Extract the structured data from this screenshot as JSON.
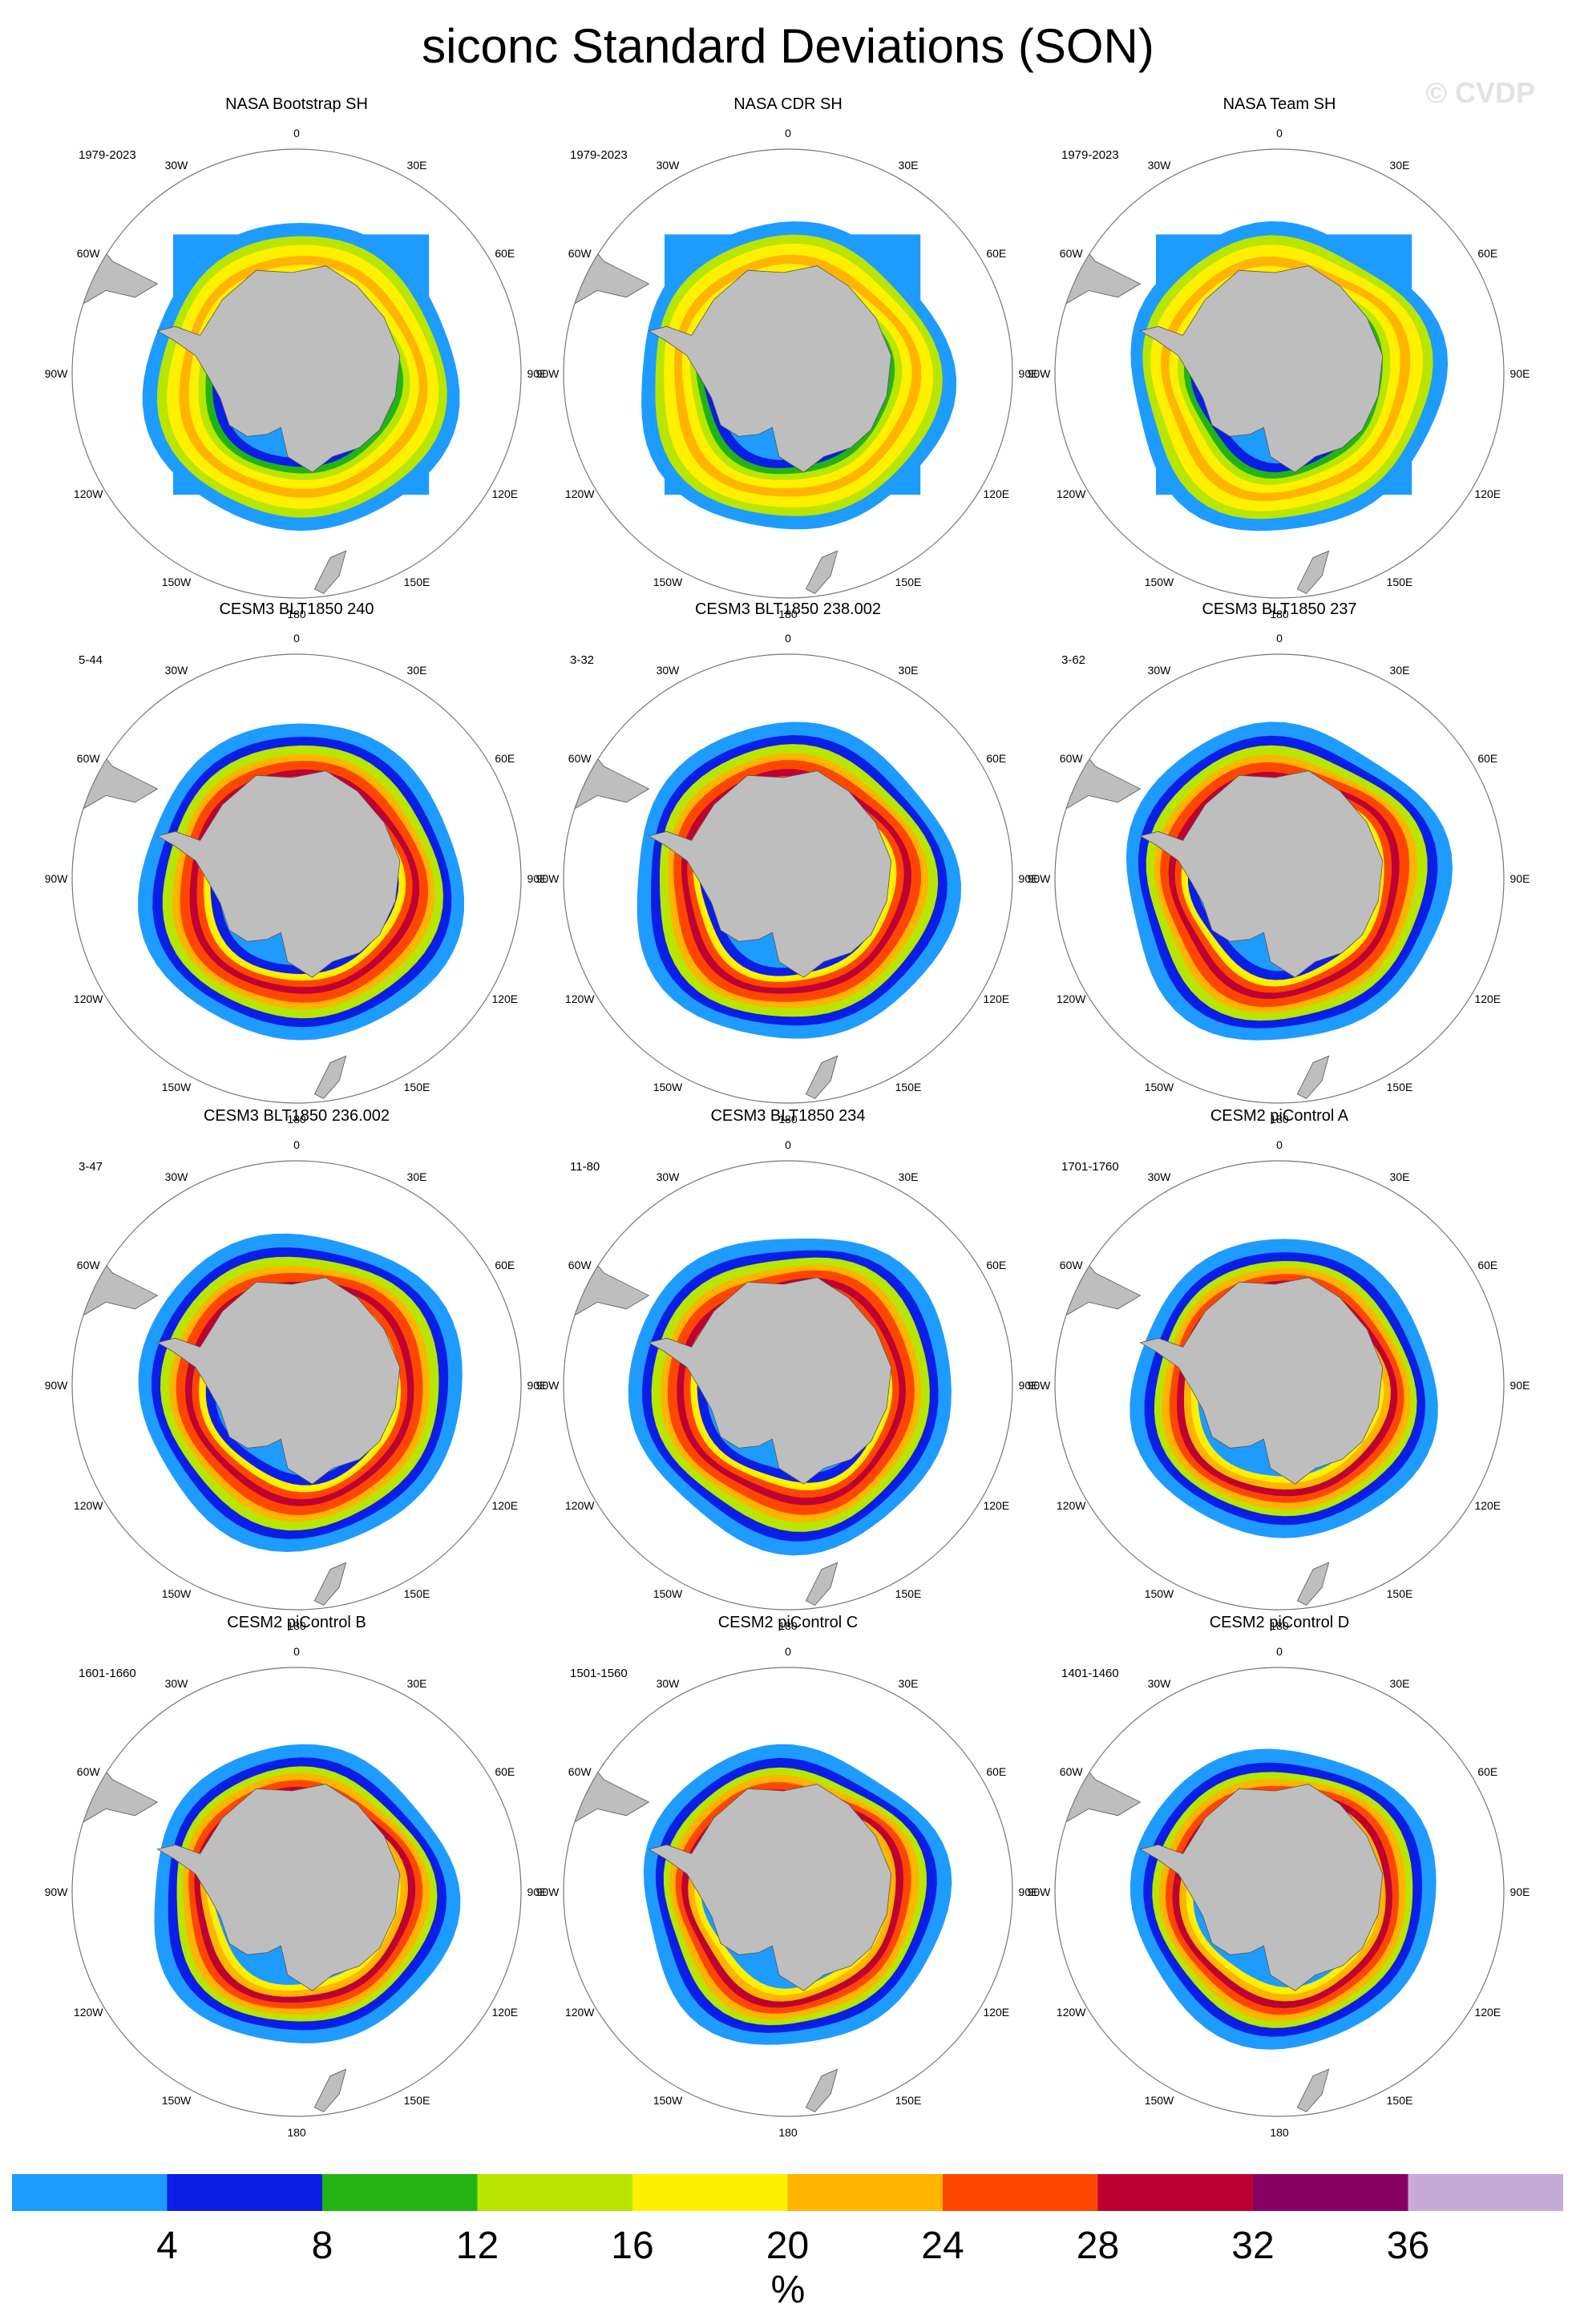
{
  "title": "siconc Standard Deviations (SON)",
  "watermark": "© CVDP",
  "panels": [
    {
      "title": "NASA Bootstrap SH",
      "years": "1979-2023",
      "style": "obs",
      "variant": 0
    },
    {
      "title": "NASA CDR SH",
      "years": "1979-2023",
      "style": "obs",
      "variant": 1
    },
    {
      "title": "NASA Team SH",
      "years": "1979-2023",
      "style": "obs",
      "variant": 2
    },
    {
      "title": "CESM3 BLT1850 240",
      "years": "5-44",
      "style": "cesm3",
      "variant": 0
    },
    {
      "title": "CESM3 BLT1850 238.002",
      "years": "3-32",
      "style": "cesm3",
      "variant": 1
    },
    {
      "title": "CESM3 BLT1850 237",
      "years": "3-62",
      "style": "cesm3",
      "variant": 2
    },
    {
      "title": "CESM3 BLT1850 236.002",
      "years": "3-47",
      "style": "cesm3",
      "variant": 3
    },
    {
      "title": "CESM3 BLT1850 234",
      "years": "11-80",
      "style": "cesm3",
      "variant": 4
    },
    {
      "title": "CESM2 piControl A",
      "years": "1701-1760",
      "style": "cesm2",
      "variant": 0
    },
    {
      "title": "CESM2 piControl B",
      "years": "1601-1660",
      "style": "cesm2",
      "variant": 1
    },
    {
      "title": "CESM2 piControl C",
      "years": "1501-1560",
      "style": "cesm2",
      "variant": 2
    },
    {
      "title": "CESM2 piControl D",
      "years": "1401-1460",
      "style": "cesm2",
      "variant": 3
    }
  ],
  "lon_labels": [
    "0",
    "30E",
    "60E",
    "90E",
    "120E",
    "150E",
    "180",
    "150W",
    "120W",
    "90W",
    "60W",
    "30W"
  ],
  "colorbar": {
    "colors": [
      "#1E9BFF",
      "#0A1EE6",
      "#23B414",
      "#B8E600",
      "#FFF000",
      "#FFB400",
      "#FF4600",
      "#BE0032",
      "#870064",
      "#C8AAD7"
    ],
    "labels": [
      "4",
      "8",
      "12",
      "16",
      "20",
      "24",
      "28",
      "32",
      "36"
    ],
    "units": "%"
  },
  "land_color": "#BEBEBE"
}
